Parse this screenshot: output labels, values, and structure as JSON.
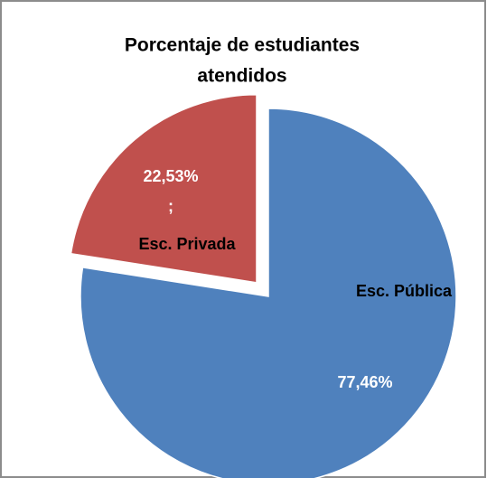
{
  "chart_data": {
    "type": "pie",
    "title": [
      "Porcentaje de estudiantes",
      "atendidos"
    ],
    "categories": [
      "Esc. Pública",
      "Esc. Privada"
    ],
    "values": [
      77.46,
      22.53
    ],
    "value_labels": [
      "77,46%",
      "22,53%"
    ],
    "label_separator": ";",
    "colors": [
      "#4f81bd",
      "#c0504d"
    ],
    "exploded": [
      false,
      true
    ]
  }
}
